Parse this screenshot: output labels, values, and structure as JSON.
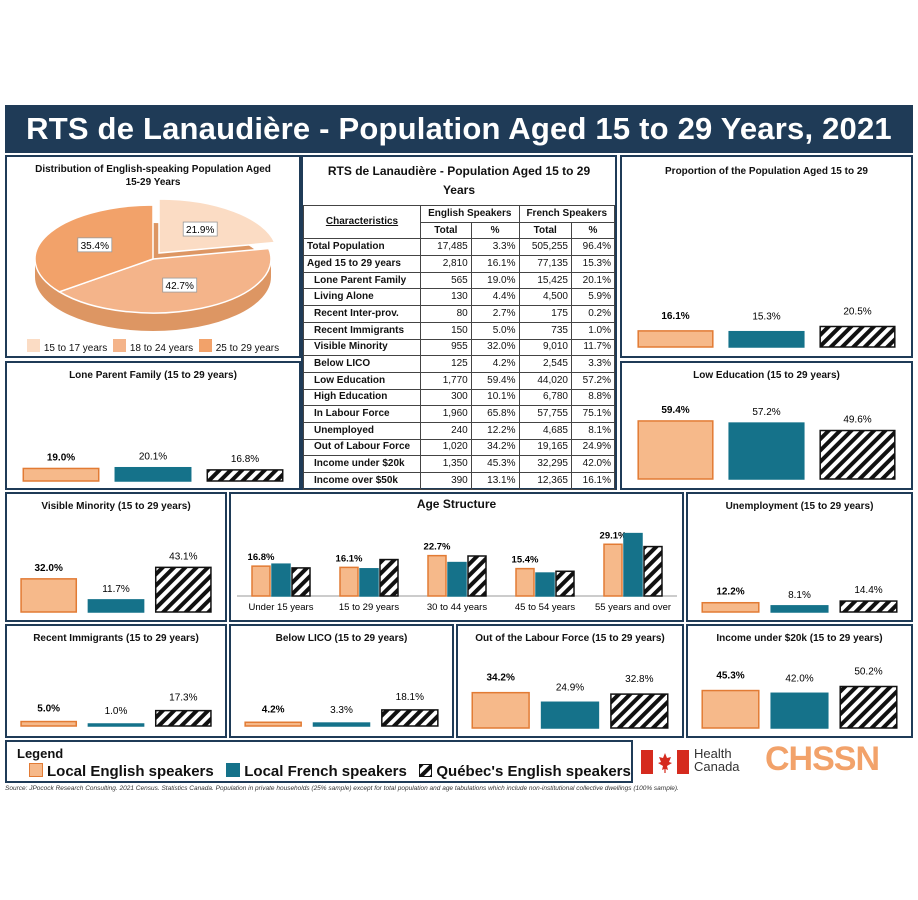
{
  "title": "RTS de Lanaudière - Population Aged 15 to 29 Years, 2021",
  "colors": {
    "english": "#f6b98a",
    "english_border": "#e27b34",
    "french": "#15728a",
    "quebec": "hatch-black",
    "banner": "#1f3b57"
  },
  "pie": {
    "title": "Distribution of English-speaking Population Aged 15-29 Years",
    "chart_data": {
      "type": "pie",
      "labels": [
        "15 to 17 years",
        "18 to 24 years",
        "25 to 29 years"
      ],
      "values": [
        21.9,
        42.7,
        35.4
      ],
      "value_labels": [
        "21.9%",
        "42.7%",
        "35.4%"
      ],
      "colors": [
        "#fbdcc4",
        "#f4b48a",
        "#f2a26a"
      ]
    }
  },
  "table": {
    "title": "RTS de Lanaudière - Population Aged 15 to 29 Years",
    "col_characteristics": "Characteristics",
    "col_english": "English Speakers",
    "col_french": "French Speakers",
    "sub_total": "Total",
    "sub_pct": "%",
    "rows": [
      {
        "label": "Total Population",
        "en_total": "17,485",
        "en_pct": "3.3%",
        "fr_total": "505,255",
        "fr_pct": "96.4%"
      },
      {
        "label": "Aged 15 to 29 years",
        "en_total": "2,810",
        "en_pct": "16.1%",
        "fr_total": "77,135",
        "fr_pct": "15.3%"
      },
      {
        "label": "Lone Parent Family",
        "en_total": "565",
        "en_pct": "19.0%",
        "fr_total": "15,425",
        "fr_pct": "20.1%"
      },
      {
        "label": "Living Alone",
        "en_total": "130",
        "en_pct": "4.4%",
        "fr_total": "4,500",
        "fr_pct": "5.9%"
      },
      {
        "label": "Recent Inter-prov.",
        "en_total": "80",
        "en_pct": "2.7%",
        "fr_total": "175",
        "fr_pct": "0.2%"
      },
      {
        "label": "Recent Immigrants",
        "en_total": "150",
        "en_pct": "5.0%",
        "fr_total": "735",
        "fr_pct": "1.0%"
      },
      {
        "label": "Visible Minority",
        "en_total": "955",
        "en_pct": "32.0%",
        "fr_total": "9,010",
        "fr_pct": "11.7%"
      },
      {
        "label": "Below LICO",
        "en_total": "125",
        "en_pct": "4.2%",
        "fr_total": "2,545",
        "fr_pct": "3.3%"
      },
      {
        "label": "Low Education",
        "en_total": "1,770",
        "en_pct": "59.4%",
        "fr_total": "44,020",
        "fr_pct": "57.2%"
      },
      {
        "label": "High Education",
        "en_total": "300",
        "en_pct": "10.1%",
        "fr_total": "6,780",
        "fr_pct": "8.8%"
      },
      {
        "label": "In Labour Force",
        "en_total": "1,960",
        "en_pct": "65.8%",
        "fr_total": "57,755",
        "fr_pct": "75.1%"
      },
      {
        "label": "Unemployed",
        "en_total": "240",
        "en_pct": "12.2%",
        "fr_total": "4,685",
        "fr_pct": "8.1%"
      },
      {
        "label": "Out of Labour Force",
        "en_total": "1,020",
        "en_pct": "34.2%",
        "fr_total": "19,165",
        "fr_pct": "24.9%"
      },
      {
        "label": "Income under $20k",
        "en_total": "1,350",
        "en_pct": "45.3%",
        "fr_total": "32,295",
        "fr_pct": "42.0%"
      },
      {
        "label": "Income over $50k",
        "en_total": "390",
        "en_pct": "13.1%",
        "fr_total": "12,365",
        "fr_pct": "16.1%"
      }
    ]
  },
  "chart_data": [
    {
      "id": "proportion",
      "type": "bar",
      "title": "Proportion of the Population Aged 15 to 29",
      "values": [
        16.1,
        15.3,
        20.5
      ],
      "labels": [
        "16.1%",
        "15.3%",
        "20.5%"
      ]
    },
    {
      "id": "lone",
      "type": "bar",
      "title": "Lone Parent Family (15 to 29 years)",
      "values": [
        19.0,
        20.1,
        16.8
      ],
      "labels": [
        "19.0%",
        "20.1%",
        "16.8%"
      ]
    },
    {
      "id": "lowedu",
      "type": "bar",
      "title": "Low Education (15 to 29 years)",
      "values": [
        59.4,
        57.2,
        49.6
      ],
      "labels": [
        "59.4%",
        "57.2%",
        "49.6%"
      ]
    },
    {
      "id": "visible",
      "type": "bar",
      "title": "Visible Minority (15 to 29 years)",
      "values": [
        32.0,
        11.7,
        43.1
      ],
      "labels": [
        "32.0%",
        "11.7%",
        "43.1%"
      ]
    },
    {
      "id": "unemp",
      "type": "bar",
      "title": "Unemployment (15 to 29 years)",
      "values": [
        12.2,
        8.1,
        14.4
      ],
      "labels": [
        "12.2%",
        "8.1%",
        "14.4%"
      ]
    },
    {
      "id": "recent",
      "type": "bar",
      "title": "Recent Immigrants (15 to 29 years)",
      "values": [
        5.0,
        1.0,
        17.3
      ],
      "labels": [
        "5.0%",
        "1.0%",
        "17.3%"
      ]
    },
    {
      "id": "lico",
      "type": "bar",
      "title": "Below LICO (15 to 29 years)",
      "values": [
        4.2,
        3.3,
        18.1
      ],
      "labels": [
        "4.2%",
        "3.3%",
        "18.1%"
      ]
    },
    {
      "id": "outlabour",
      "type": "bar",
      "title": "Out of the Labour Force (15 to 29 years)",
      "values": [
        34.2,
        24.9,
        32.8
      ],
      "labels": [
        "34.2%",
        "24.9%",
        "32.8%"
      ]
    },
    {
      "id": "income",
      "type": "bar",
      "title": "Income under $20k (15 to 29 years)",
      "values": [
        45.3,
        42.0,
        50.2
      ],
      "labels": [
        "45.3%",
        "42.0%",
        "50.2%"
      ]
    },
    {
      "id": "age",
      "type": "bar",
      "title": "Age Structure",
      "categories": [
        "Under 15 years",
        "15 to 29 years",
        "30 to 44 years",
        "45 to 54 years",
        "55 years and over"
      ],
      "series": [
        {
          "values": [
            16.8,
            16.1,
            22.7,
            15.4,
            29.1
          ],
          "labels": [
            "16.8%",
            "16.1%",
            "22.7%",
            "15.4%",
            "29.1%"
          ]
        },
        {
          "values": [
            17.9,
            15.3,
            18.8,
            12.9,
            35.1
          ]
        },
        {
          "values": [
            15.8,
            20.5,
            22.5,
            13.9,
            27.8
          ]
        }
      ]
    }
  ],
  "legend": {
    "title": "Legend",
    "english": "Local English speakers",
    "french": "Local French speakers",
    "quebec": "Québec's English speakers"
  },
  "logos": {
    "health1": "Health",
    "health2": "Canada",
    "chssn": "CHSSN"
  },
  "source": "Source: JPocock Research Consulting. 2021 Census. Statistics Canada. Population in private households (25% sample) except for total population and age tabulations which include non-institutional collective dwellings (100% sample)."
}
